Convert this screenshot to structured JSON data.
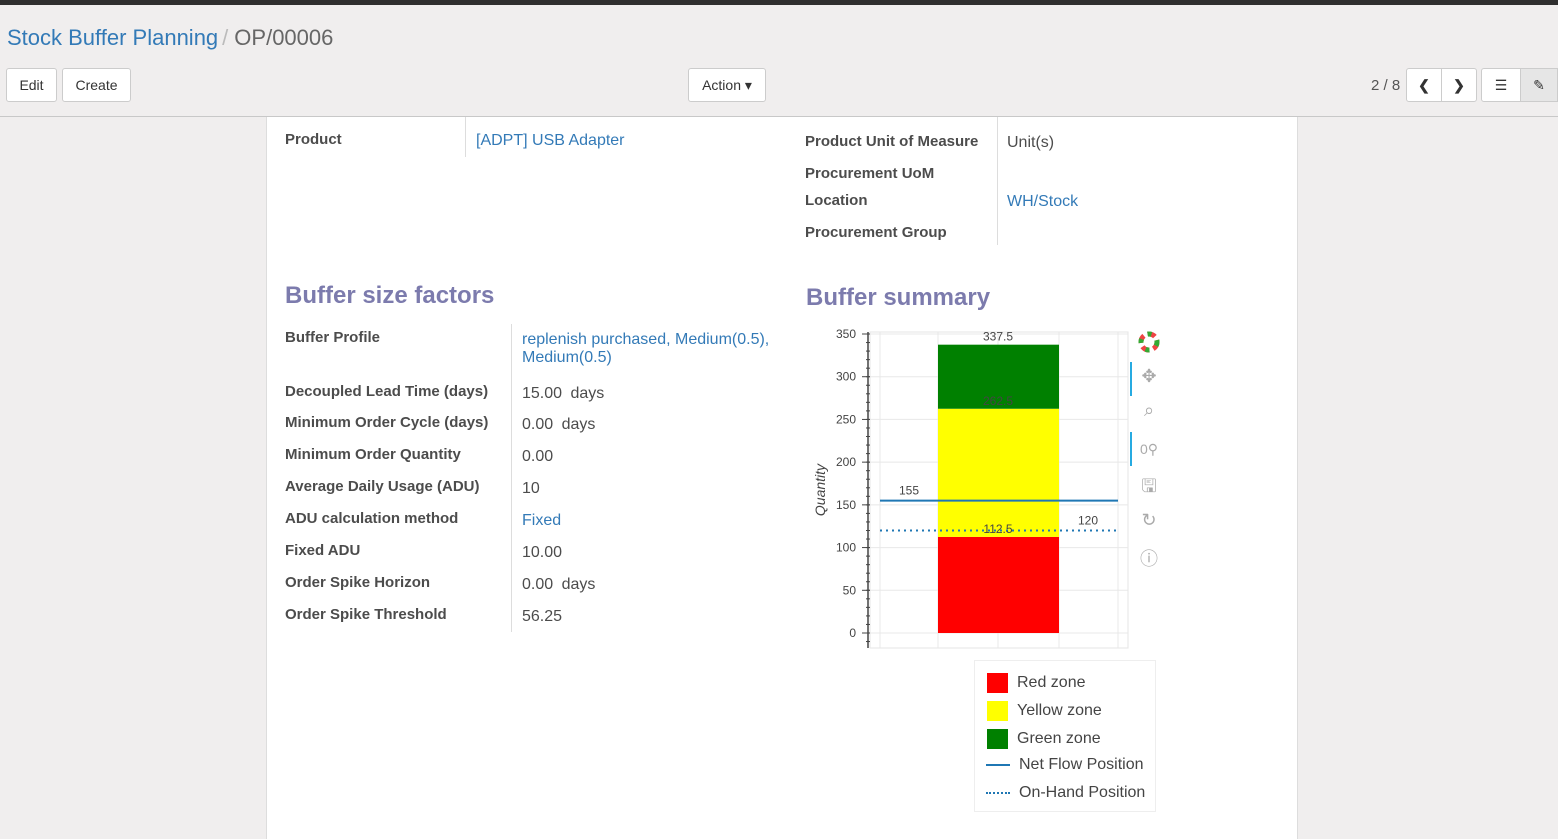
{
  "breadcrumb": {
    "parent": "Stock Buffer Planning",
    "current": "OP/00006"
  },
  "buttons": {
    "edit": "Edit",
    "create": "Create",
    "action": "Action ▾"
  },
  "pager": {
    "value": "2 / 8"
  },
  "fields": {
    "product_label": "Product",
    "product_value": "[ADPT] USB Adapter",
    "uom_label": "Product Unit of Measure",
    "uom_value": "Unit(s)",
    "proc_uom_label": "Procurement UoM",
    "location_label": "Location",
    "location_value": "WH/Stock",
    "proc_group_label": "Procurement Group"
  },
  "buffer_factors": {
    "title": "Buffer size factors",
    "rows": [
      {
        "label": "Buffer Profile",
        "value": "replenish purchased, Medium(0.5),",
        "value2": "Medium(0.5)",
        "link": true
      },
      {
        "label": "Decoupled Lead Time (days)",
        "value": "15.00",
        "unit": "days"
      },
      {
        "label": "Minimum Order Cycle (days)",
        "value": "0.00",
        "unit": "days"
      },
      {
        "label": "Minimum Order Quantity",
        "value": "0.00"
      },
      {
        "label": "Average Daily Usage (ADU)",
        "value": "10"
      },
      {
        "label": "ADU calculation method",
        "value": "Fixed",
        "link": true
      },
      {
        "label": "Fixed ADU",
        "value": "10.00"
      },
      {
        "label": "Order Spike Horizon",
        "value": "0.00",
        "unit": "days"
      },
      {
        "label": "Order Spike Threshold",
        "value": "56.25"
      }
    ]
  },
  "buffer_summary": {
    "title": "Buffer summary"
  },
  "chart_data": {
    "type": "bar",
    "stacked": true,
    "ylabel": "Quantity",
    "ylim": [
      -17.5,
      352
    ],
    "yticks": [
      0,
      50,
      100,
      150,
      200,
      250,
      300,
      350
    ],
    "grid": true,
    "series": [
      {
        "name": "Red zone",
        "from": 0,
        "to": 112.5,
        "color": "#ff0000"
      },
      {
        "name": "Yellow zone",
        "from": 112.5,
        "to": 262.5,
        "color": "#ffff00"
      },
      {
        "name": "Green zone",
        "from": 262.5,
        "to": 337.5,
        "color": "#008000"
      }
    ],
    "bar_labels": [
      "112.5",
      "262.5",
      "337.5"
    ],
    "lines": [
      {
        "name": "Net Flow Position",
        "value": 155,
        "label": "155",
        "style": "solid",
        "color": "#1f77b4"
      },
      {
        "name": "On-Hand Position",
        "value": 120,
        "label": "120",
        "style": "dotted",
        "color": "#1f77b4"
      }
    ],
    "legend_position": "bottom"
  }
}
